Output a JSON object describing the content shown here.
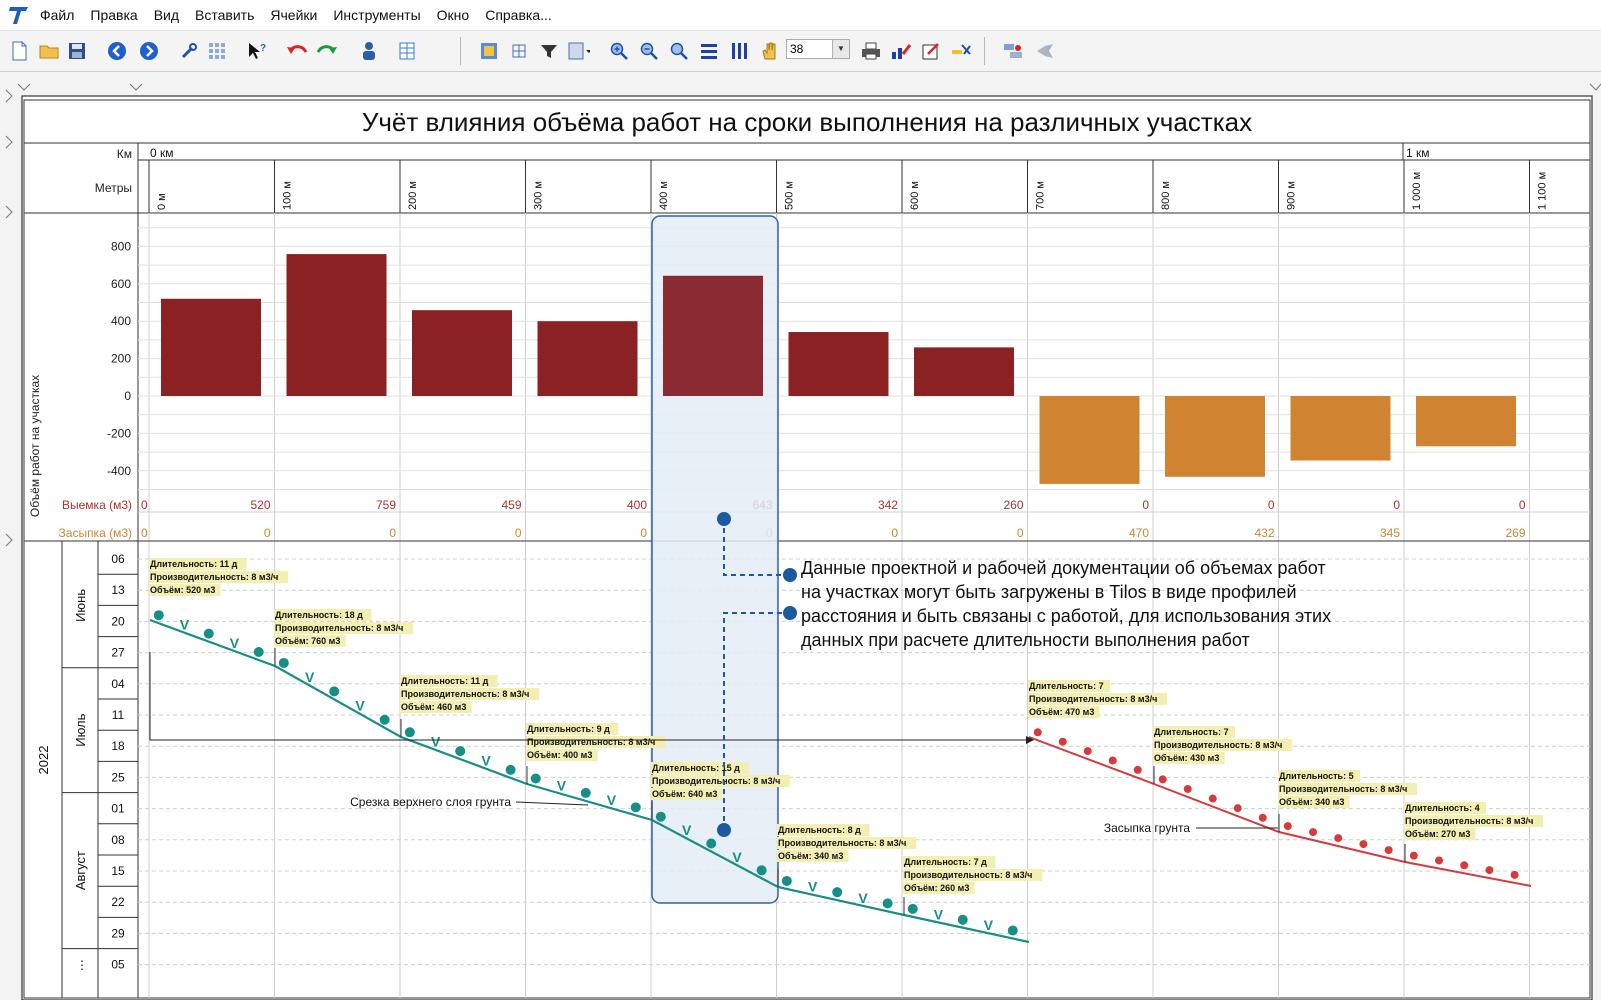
{
  "menu": [
    "Файл",
    "Правка",
    "Вид",
    "Вставить",
    "Ячейки",
    "Инструменты",
    "Окно",
    "Справка..."
  ],
  "toolbar": {
    "zoom_value": "38",
    "icons": [
      "new-document-icon",
      "open-folder-icon",
      "save-icon",
      "back-icon",
      "forward-icon",
      "tools-icon",
      "grid-icon",
      "help-cursor-icon",
      "undo-icon",
      "redo-icon",
      "user-icon",
      "table-icon",
      "calendar-view-icon",
      "grid-small-icon",
      "filter-icon",
      "layout-icon",
      "zoom-in-icon",
      "zoom-out-icon",
      "zoom-fit-icon",
      "horizontal-bars-icon",
      "vertical-bars-icon",
      "hand-pan-icon",
      "print-icon",
      "edit-chart-icon",
      "edit-icon",
      "link-icon",
      "settings-icon",
      "connect-icon"
    ]
  },
  "chart": {
    "title": "Учёт влияния объёма работ на сроки выполнения на различных участках",
    "km_label": "Км",
    "meters_label": "Метры",
    "km_marks": [
      "0 км",
      "1 км"
    ],
    "meter_marks": [
      "0 м",
      "100 м",
      "200 м",
      "300 м",
      "400 м",
      "500 м",
      "600 м",
      "700 м",
      "800 м",
      "900 м",
      "1 000 м",
      "1 100 м"
    ],
    "y_axis_label": "Объём работ на участках",
    "row_labels": {
      "cut": "Выемка (м3)",
      "fill": "Засыпка (м3)"
    },
    "colors": {
      "cut": "#8b2123",
      "cut_highlight": "#8a2a32",
      "fill": "#d08431",
      "cut_text": "#b03030",
      "fill_text": "#d08431",
      "teal": "#178f87",
      "red_line": "#d63a3a",
      "note_box": "#f3efb3",
      "highlight_fill": "#e4ecf5",
      "highlight_border": "#2c64a8",
      "callout": "#1c5aa0"
    },
    "time_axis": {
      "year": "2022",
      "months": [
        "Июнь",
        "Июль",
        "Август",
        "⋮"
      ],
      "days": [
        "06",
        "13",
        "20",
        "27",
        "04",
        "11",
        "18",
        "25",
        "01",
        "08",
        "15",
        "22",
        "29",
        "05"
      ]
    },
    "callout_text": [
      "Данные проектной и рабочей документации об объемах работ",
      "на участках могут быть загружены в Tilos в виде профилей",
      "расстояния и быть связаны с работой, для использования этих",
      "данных при расчете длительности выполнения работ"
    ],
    "label_topsoil": "Срезка верхнего слоя грунта",
    "label_backfill": "Засыпка грунта",
    "annotations": [
      [
        "Длительность: 11 д",
        "Производительность: 8 м3/ч",
        "Объём: 520 м3"
      ],
      [
        "Длительность: 18 д",
        "Производительность: 8 м3/ч",
        "Объём: 760 м3"
      ],
      [
        "Длительность: 11 д",
        "Производительность: 8 м3/ч",
        "Объём: 460 м3"
      ],
      [
        "Длительность: 9 д",
        "Производительность: 8 м3/ч",
        "Объём: 400 м3"
      ],
      [
        "Длительность: 15 д",
        "Производительность: 8 м3/ч",
        "Объём: 640 м3"
      ],
      [
        "Длительность: 8 д",
        "Производительность: 8 м3/ч",
        "Объём: 340 м3"
      ],
      [
        "Длительность: 7 д",
        "Производительность: 8 м3/ч",
        "Объём: 260 м3"
      ],
      [
        "Длительность: 7",
        "Производительность: 8 м3/ч",
        "Объём: 470 м3"
      ],
      [
        "Длительность: 7",
        "Производительность: 8 м3/ч",
        "Объём: 430 м3"
      ],
      [
        "Длительность: 5",
        "Производительность: 8 м3/ч",
        "Объём: 340 м3"
      ],
      [
        "Длительность: 4",
        "Производительность: 8 м3/ч",
        "Объём: 270 м3"
      ]
    ]
  },
  "chart_data": {
    "type": "bar",
    "title": "Учёт влияния объёма работ на сроки выполнения на различных участках",
    "categories": [
      "0 м",
      "100 м",
      "200 м",
      "300 м",
      "400 м",
      "500 м",
      "600 м",
      "700 м",
      "800 м",
      "900 м",
      "1 000 м"
    ],
    "ylabel": "Объём работ на участках",
    "ylim": [
      -500,
      900
    ],
    "yticks": [
      800,
      600,
      400,
      200,
      0,
      -200,
      -400
    ],
    "series": [
      {
        "name": "Выемка (м3)",
        "values": [
          520,
          759,
          459,
          400,
          643,
          342,
          260,
          0,
          0,
          0,
          0
        ]
      },
      {
        "name": "Засыпка (м3)",
        "values": [
          0,
          0,
          0,
          0,
          0,
          0,
          0,
          470,
          432,
          345,
          269
        ]
      }
    ]
  }
}
